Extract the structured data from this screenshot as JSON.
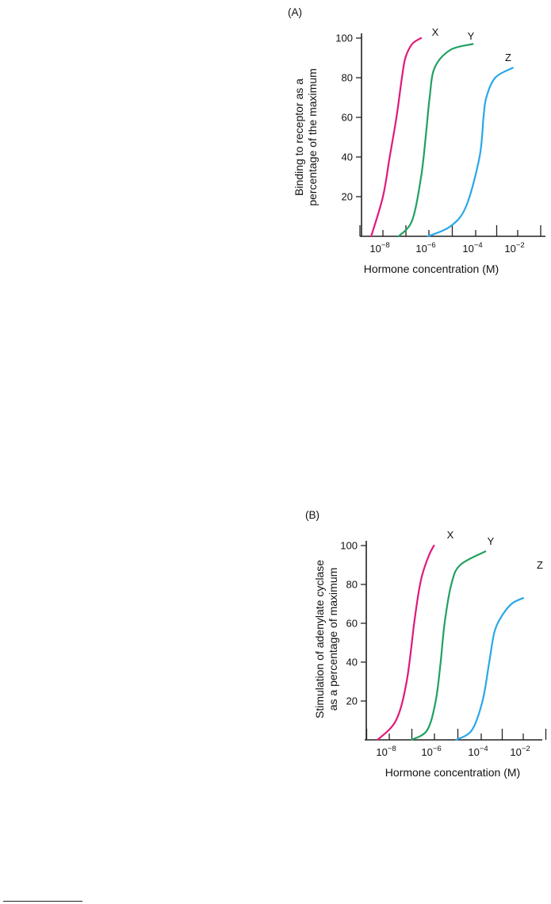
{
  "chart_data": [
    {
      "type": "line",
      "panel_label": "(A)",
      "xlabel": "Hormone concentration (M)",
      "ylabel_lines": [
        "Binding to receptor as a",
        "percentage of the maximum"
      ],
      "x_scale": "log",
      "x_tick_labels": [
        "10",
        "10",
        "10",
        "10"
      ],
      "x_tick_exponents": [
        "−8",
        "−6",
        "−4",
        "−2"
      ],
      "x_tick_values": [
        1e-08,
        1e-06,
        0.0001,
        0.01
      ],
      "xlim": [
        1e-09,
        0.01
      ],
      "ylim": [
        0,
        100
      ],
      "y_ticks": [
        20,
        40,
        60,
        80,
        100
      ],
      "y_tick_labels": [
        "20",
        "40",
        "60",
        "80",
        "100"
      ],
      "series": [
        {
          "name": "X",
          "color": "#e0187a",
          "x": [
            3e-09,
            1e-08,
            2e-08,
            4e-08,
            7e-08,
            1e-07,
            2e-07,
            5e-07
          ],
          "y": [
            0,
            20,
            40,
            60,
            80,
            90,
            97,
            100
          ]
        },
        {
          "name": "Y",
          "color": "#21a060",
          "x": [
            5e-08,
            2e-07,
            5e-07,
            8e-07,
            1.2e-06,
            2e-06,
            1e-05,
            0.0001
          ],
          "y": [
            0,
            8,
            30,
            50,
            70,
            85,
            94,
            97
          ]
        },
        {
          "name": "Z",
          "color": "#2aa7e8",
          "x": [
            1e-06,
            1e-05,
            5e-05,
            0.0002,
            0.0003,
            0.0004,
            0.001,
            0.006
          ],
          "y": [
            0,
            5,
            15,
            40,
            60,
            70,
            80,
            85
          ]
        }
      ]
    },
    {
      "type": "line",
      "panel_label": "(B)",
      "xlabel": "Hormone concentration (M)",
      "ylabel_lines": [
        "Stimulation of adenylate cyclase",
        "as a percentage of maximum"
      ],
      "x_scale": "log",
      "x_tick_labels": [
        "10",
        "10",
        "10",
        "10"
      ],
      "x_tick_exponents": [
        "−8",
        "−6",
        "−4",
        "−2"
      ],
      "x_tick_values": [
        1e-08,
        1e-06,
        0.0001,
        0.01
      ],
      "xlim": [
        1e-09,
        0.01
      ],
      "ylim": [
        0,
        100
      ],
      "y_ticks": [
        20,
        40,
        60,
        80,
        100
      ],
      "y_tick_labels": [
        "20",
        "40",
        "60",
        "80",
        "100"
      ],
      "series": [
        {
          "name": "X",
          "color": "#e0187a",
          "x": [
            3e-09,
            2e-08,
            6e-08,
            1.3e-07,
            2e-07,
            3e-07,
            6e-07,
            1e-06
          ],
          "y": [
            0,
            10,
            30,
            60,
            75,
            85,
            95,
            100
          ]
        },
        {
          "name": "Y",
          "color": "#21a060",
          "x": [
            1e-07,
            5e-07,
            1.2e-06,
            2e-06,
            3e-06,
            6e-06,
            1.5e-05,
            0.0002
          ],
          "y": [
            0,
            5,
            20,
            40,
            60,
            80,
            90,
            97
          ]
        },
        {
          "name": "Z",
          "color": "#2aa7e8",
          "x": [
            1e-05,
            5e-05,
            0.00015,
            0.0003,
            0.0005,
            0.001,
            0.003,
            0.01
          ],
          "y": [
            0,
            5,
            20,
            40,
            55,
            63,
            70,
            73
          ]
        }
      ]
    }
  ]
}
